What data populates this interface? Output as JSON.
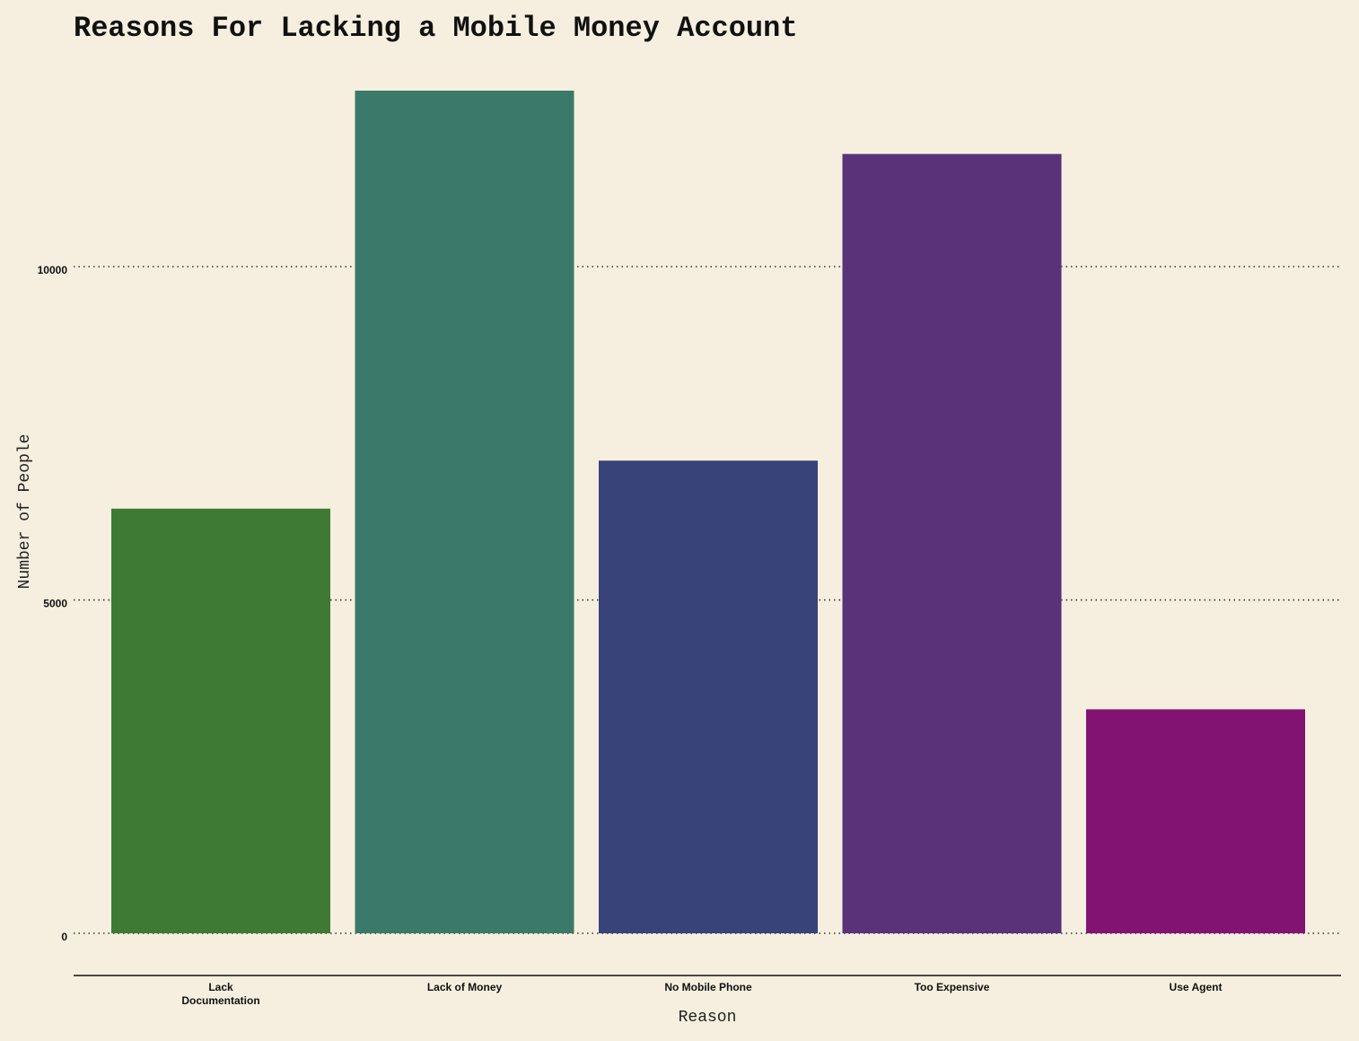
{
  "chart_data": {
    "type": "bar",
    "title": "Reasons For Lacking a Mobile Money Account",
    "xlabel": "Reason",
    "ylabel": "Number of People",
    "categories": [
      "Lack Documentation",
      "Lack of Money",
      "No Mobile Phone",
      "Too Expensive",
      "Use Agent"
    ],
    "category_label_lines": [
      [
        "Lack",
        "Documentation"
      ],
      [
        "Lack of Money"
      ],
      [
        "No Mobile Phone"
      ],
      [
        "Too Expensive"
      ],
      [
        "Use Agent"
      ]
    ],
    "values": [
      6370,
      12640,
      7090,
      11690,
      3360
    ],
    "colors": [
      "#3f7a35",
      "#3b7a6b",
      "#374379",
      "#583379",
      "#821373"
    ],
    "ylim": [
      0,
      12640
    ],
    "yticks": [
      0,
      5000,
      10000
    ],
    "ytick_labels": [
      "0",
      "5000",
      "10000"
    ],
    "grid": "horizontal dotted",
    "legend": "none"
  }
}
